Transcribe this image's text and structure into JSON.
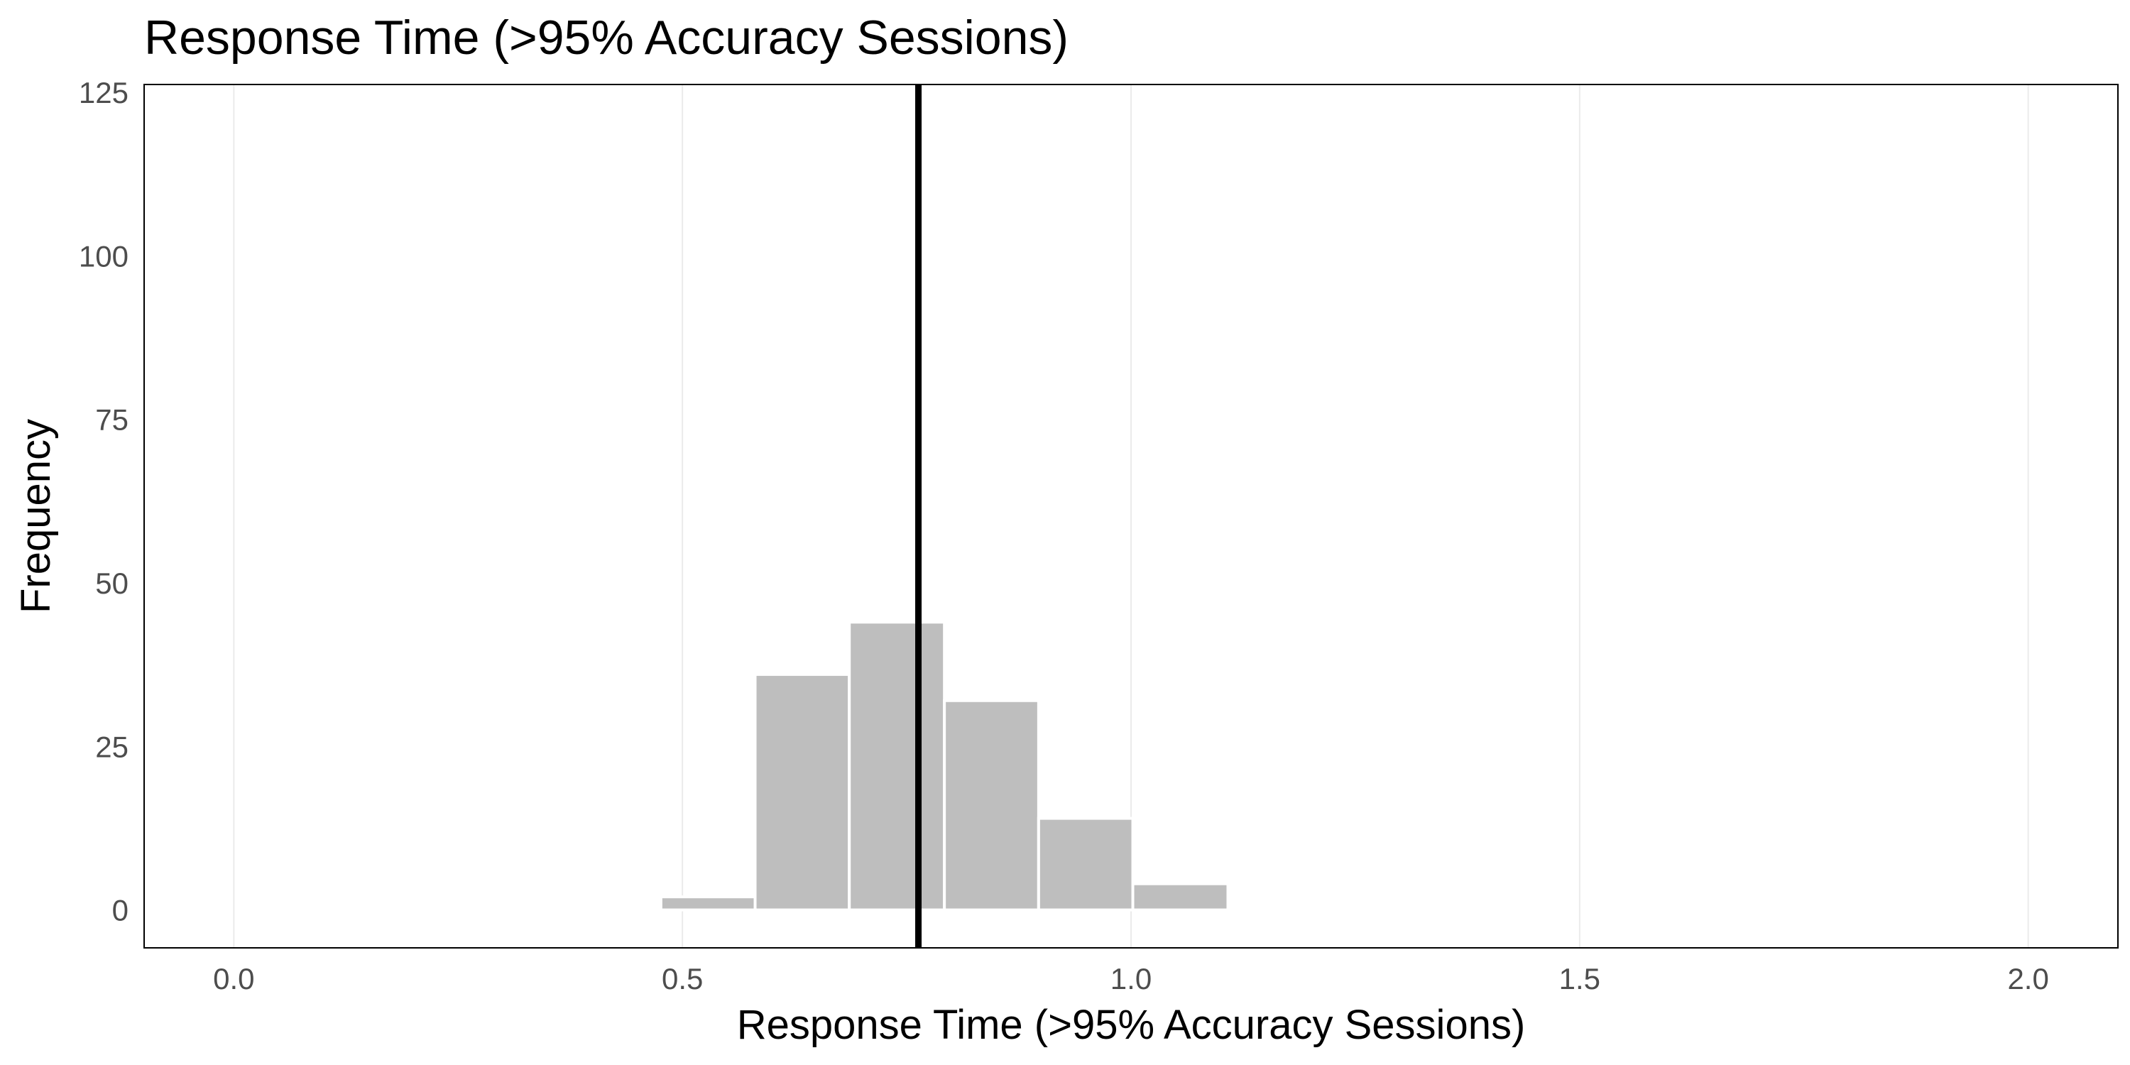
{
  "chart_data": {
    "type": "bar",
    "subtype": "histogram",
    "title": "Response Time (>95% Accuracy Sessions)",
    "xlabel": "Response Time (>95% Accuracy Sessions)",
    "ylabel": "Frequency",
    "xlim": [
      -0.1,
      2.1
    ],
    "ylim": [
      -5.8,
      126.2
    ],
    "x_ticks": [
      "0.0",
      "0.5",
      "1.0",
      "1.5",
      "2.0"
    ],
    "x_tick_values": [
      0,
      0.5,
      1.0,
      1.5,
      2.0
    ],
    "y_ticks": [
      "0",
      "25",
      "50",
      "75",
      "100",
      "125"
    ],
    "y_tick_values": [
      0,
      25,
      50,
      75,
      100,
      125
    ],
    "grid": "vertical major lines, light gray",
    "bins": [
      {
        "start": 0.476,
        "end": 0.581,
        "count": 2
      },
      {
        "start": 0.581,
        "end": 0.686,
        "count": 36
      },
      {
        "start": 0.686,
        "end": 0.792,
        "count": 44
      },
      {
        "start": 0.792,
        "end": 0.897,
        "count": 32
      },
      {
        "start": 0.897,
        "end": 1.002,
        "count": 14
      },
      {
        "start": 1.002,
        "end": 1.108,
        "count": 4
      }
    ],
    "vline": {
      "x": 0.763,
      "color": "#000000"
    },
    "bar_color": "#bebebe",
    "bar_outline": "#ffffff"
  }
}
